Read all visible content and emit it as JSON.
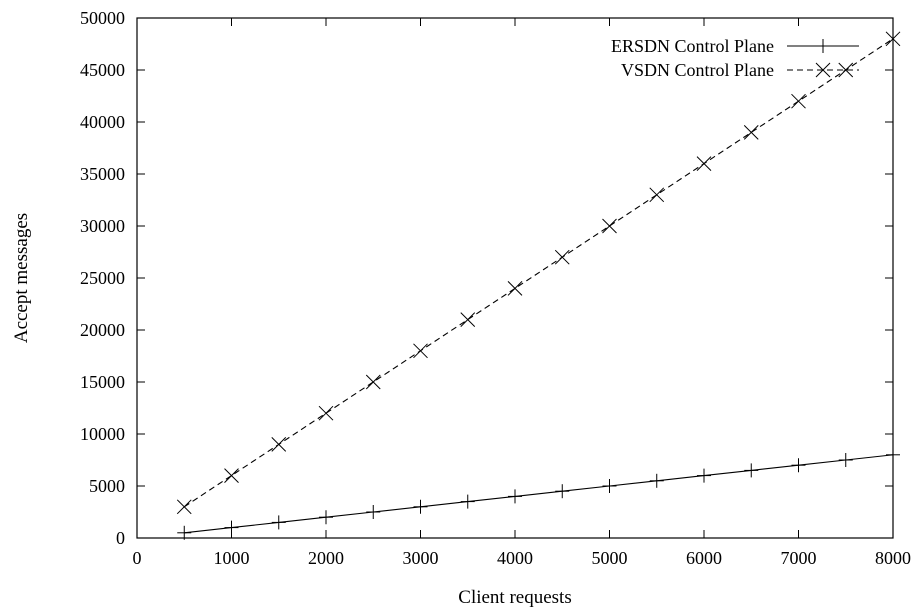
{
  "chart_data": {
    "type": "line",
    "title": "",
    "xlabel": "Client requests",
    "ylabel": "Accept messages",
    "xlim": [
      0,
      8000
    ],
    "ylim": [
      0,
      50000
    ],
    "xticks": [
      0,
      1000,
      2000,
      3000,
      4000,
      5000,
      6000,
      7000,
      8000
    ],
    "yticks": [
      0,
      5000,
      10000,
      15000,
      20000,
      25000,
      30000,
      35000,
      40000,
      45000,
      50000
    ],
    "grid": false,
    "legend_position": "top-right",
    "x": [
      500,
      1000,
      1500,
      2000,
      2500,
      3000,
      3500,
      4000,
      4500,
      5000,
      5500,
      6000,
      6500,
      7000,
      7500,
      8000
    ],
    "series": [
      {
        "name": "ERSDN Control Plane",
        "line_style": "solid",
        "marker": "plus",
        "color": "#000000",
        "values": [
          500,
          1000,
          1500,
          2000,
          2500,
          3000,
          3500,
          4000,
          4500,
          5000,
          5500,
          6000,
          6500,
          7000,
          7500,
          8000
        ]
      },
      {
        "name": "VSDN Control Plane",
        "line_style": "dashed",
        "marker": "cross",
        "color": "#000000",
        "values": [
          3000,
          6000,
          9000,
          12000,
          15000,
          18000,
          21000,
          24000,
          27000,
          30000,
          33000,
          36000,
          39000,
          42000,
          45000,
          48000
        ]
      }
    ]
  }
}
